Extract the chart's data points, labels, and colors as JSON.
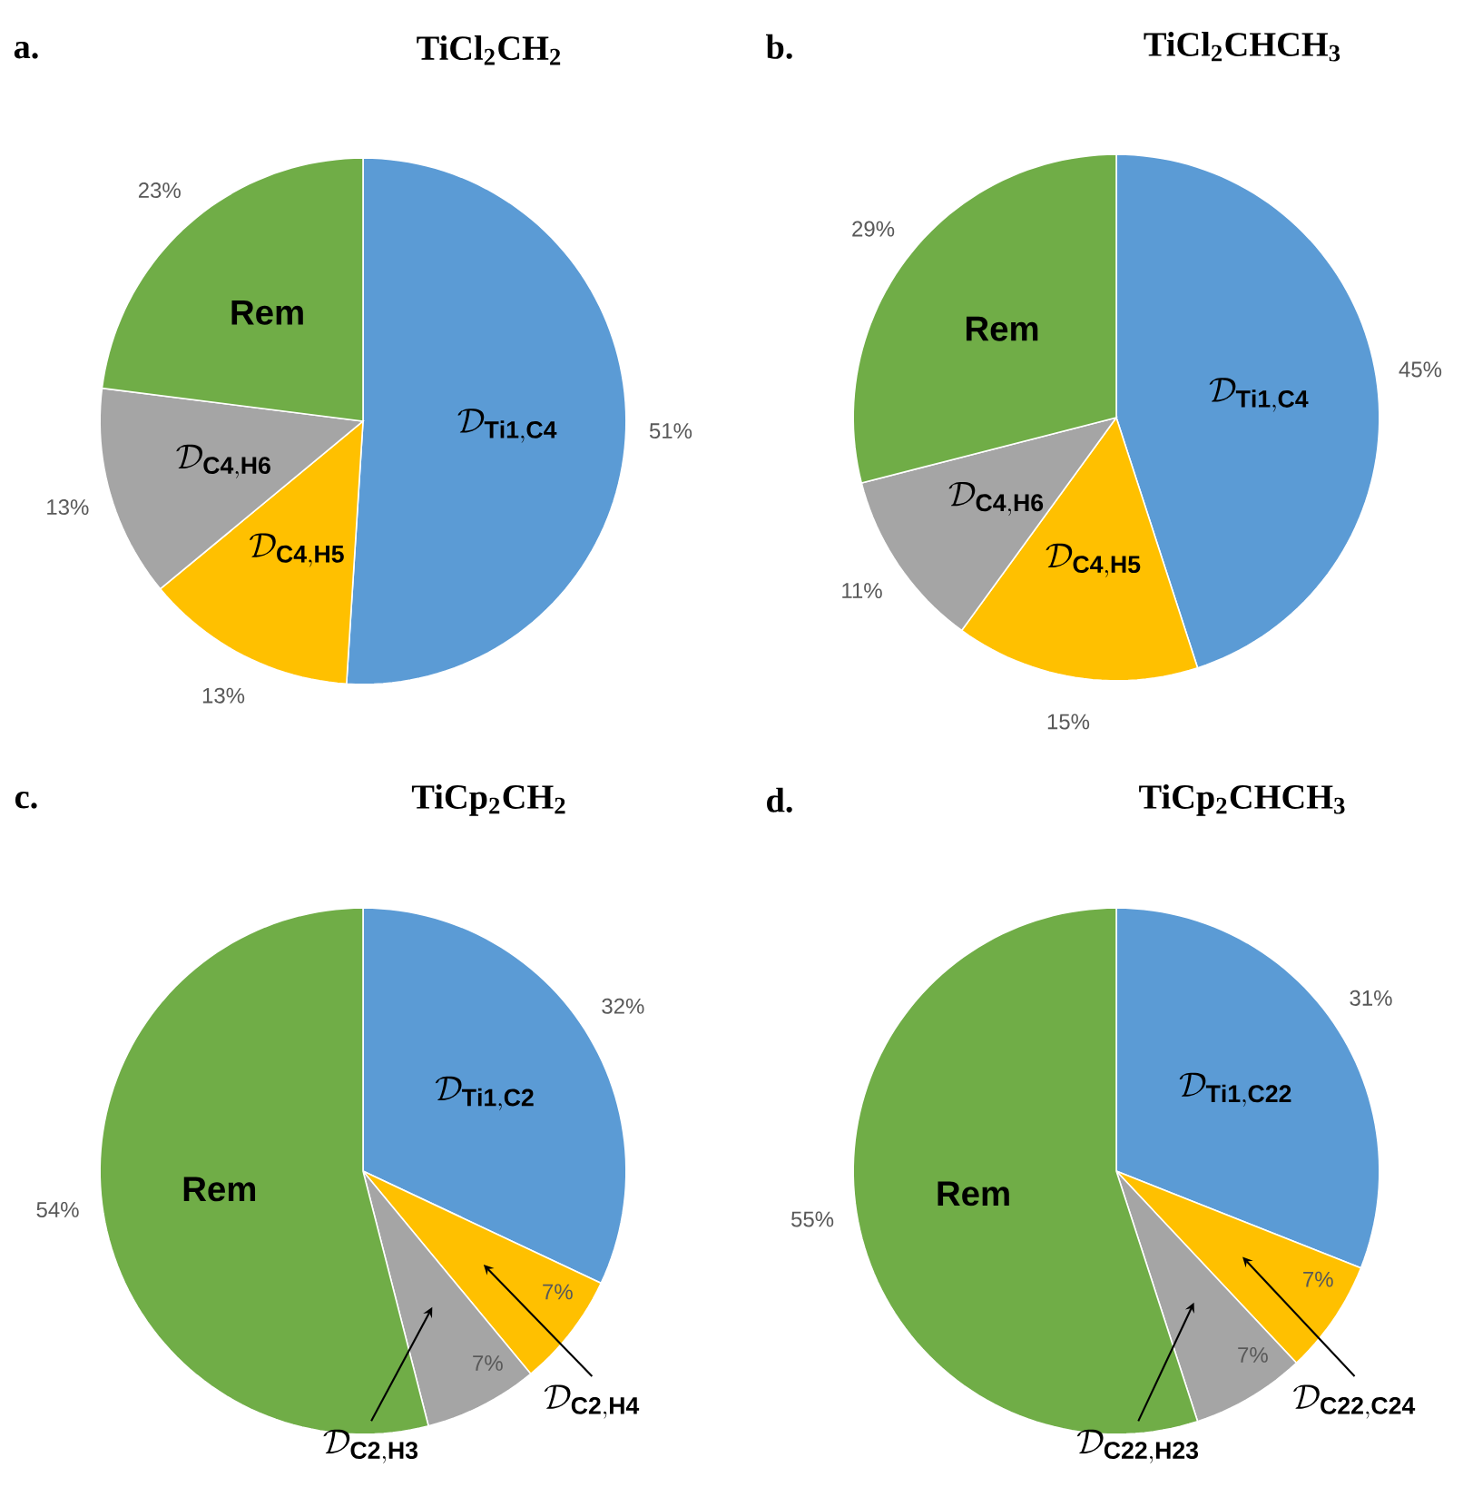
{
  "chart_data": [
    {
      "type": "pie",
      "title": "TiCl$_{2}$CH$_{2}$",
      "annotations": [
        "a."
      ],
      "categories": [
        "\\mathcal{D}_{\\mathbf{Ti1,C4}}",
        "\\mathcal{D}_{\\mathbf{C4,H5}}",
        "\\mathcal{D}_{\\mathbf{C4,H6}}",
        "\\textbf{Rem}"
      ],
      "values": [
        51,
        13,
        13,
        23
      ],
      "value_labels": [
        "51%",
        "13%",
        "13%",
        "23%"
      ],
      "colors": [
        "#5b9bd5",
        "#ffc000",
        "#a5a5a5",
        "#70ad47"
      ]
    },
    {
      "type": "pie",
      "title": "TiCl$_{2}$CHCH$_{3}$",
      "annotations": [
        "b."
      ],
      "categories": [
        "\\mathcal{D}_{\\mathbf{Ti1,C4}}",
        "\\mathcal{D}_{\\mathbf{C4,H5}}",
        "\\mathcal{D}_{\\mathbf{C4,H6}}",
        "\\textbf{Rem}"
      ],
      "values": [
        45,
        15,
        11,
        29
      ],
      "value_labels": [
        "45%",
        "15%",
        "11%",
        "29%"
      ],
      "colors": [
        "#5b9bd5",
        "#ffc000",
        "#a5a5a5",
        "#70ad47"
      ]
    },
    {
      "type": "pie",
      "title": "TiCp$_{2}$CH$_{2}$",
      "annotations": [
        "c."
      ],
      "categories": [
        "\\mathcal{D}_{\\mathbf{Ti1,C2}}",
        "\\mathcal{D}_{\\mathbf{C2,H4}}",
        "\\mathcal{D}_{\\mathbf{C2,H3}}",
        "\\textbf{Rem}"
      ],
      "values": [
        32,
        7,
        7,
        54
      ],
      "value_labels": [
        "32%",
        "7%",
        "7%",
        "54%"
      ],
      "colors": [
        "#5b9bd5",
        "#ffc000",
        "#a5a5a5",
        "#70ad47"
      ]
    },
    {
      "type": "pie",
      "title": "TiCp$_{2}$CHCH$_{3}$",
      "annotations": [
        "d."
      ],
      "categories": [
        "\\mathcal{D}_{\\mathbf{Ti1,C22}}",
        "\\mathcal{D}_{\\mathbf{C22,C24}}",
        "\\mathcal{D}_{\\mathbf{C22,H23}}",
        "\\textbf{Rem}"
      ],
      "values": [
        31,
        7,
        7,
        55
      ],
      "value_labels": [
        "31%",
        "7%",
        "7%",
        "55%"
      ],
      "colors": [
        "#5b9bd5",
        "#ffc000",
        "#a5a5a5",
        "#70ad47"
      ]
    }
  ]
}
